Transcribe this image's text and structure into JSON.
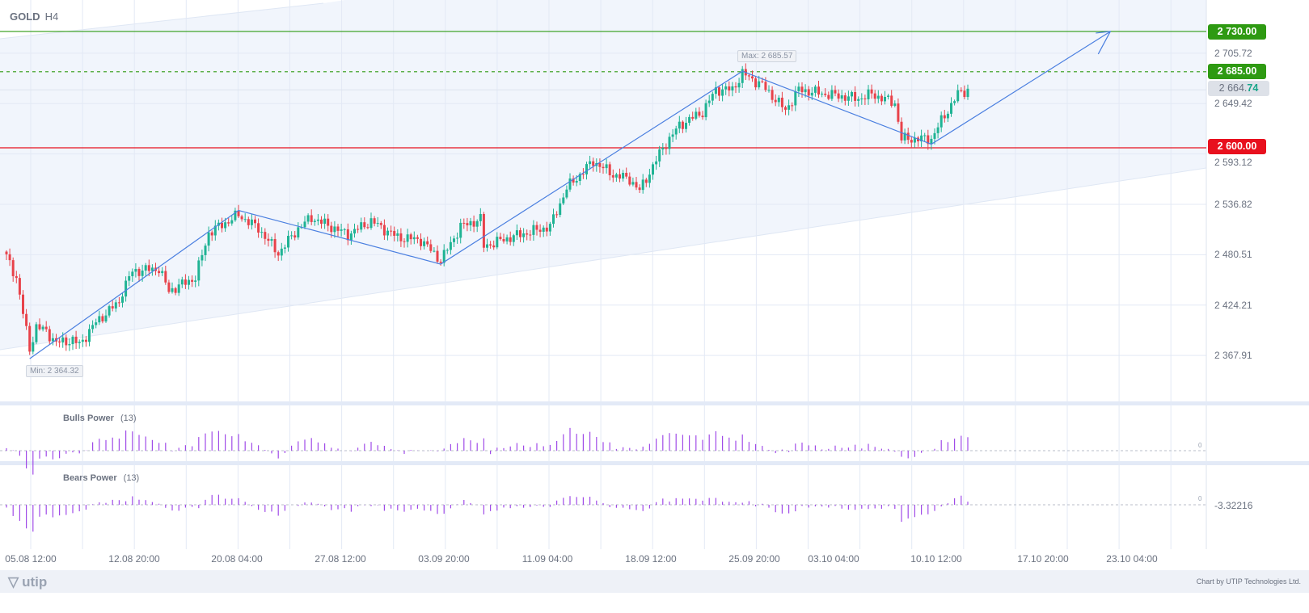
{
  "header": {
    "symbol": "GOLD",
    "timeframe": "H4"
  },
  "price_axis": {
    "ticks": [
      "2 705.72",
      "2 649.42",
      "2 593.12",
      "2 536.82",
      "2 480.51",
      "2 424.21",
      "2 367.91"
    ],
    "tick_values": [
      2705.72,
      2649.42,
      2593.12,
      2536.82,
      2480.51,
      2424.21,
      2367.91
    ],
    "levels": [
      {
        "label": "2 730.00",
        "value": 2730,
        "color": "#2e9a12",
        "style": "solid"
      },
      {
        "label": "2 685.00",
        "value": 2685,
        "color": "#2e9a12",
        "style": "dashed"
      },
      {
        "label": "2 600.00",
        "value": 2600,
        "color": "#e8101e",
        "style": "solid"
      }
    ],
    "current_price": {
      "main": "2 664.",
      "accent": "74",
      "value": 2664.74
    }
  },
  "annotations": {
    "max_label": "Max: 2 685.57",
    "min_label": "Min: 2 364.32"
  },
  "x_axis": {
    "labels": [
      "05.08 12:00",
      "12.08 20:00",
      "20.08 04:00",
      "27.08 12:00",
      "03.09 20:00",
      "11.09 04:00",
      "18.09 12:00",
      "25.09 20:00",
      "03.10 04:00",
      "10.10 12:00",
      "17.10 20:00",
      "23.10 04:00"
    ]
  },
  "indicators": {
    "bulls": {
      "name": "Bulls Power",
      "period": "(13)",
      "zero": "0"
    },
    "bears": {
      "name": "Bears Power",
      "period": "(13)",
      "zero": "0",
      "value": "-3.32216"
    }
  },
  "footer": {
    "logo": "utip",
    "credit": "Chart by UTIP Technologies Ltd."
  },
  "colors": {
    "up": "#1fb394",
    "down": "#e8424a",
    "trend": "#4a7fe0",
    "indicator": "#a04be8"
  },
  "chart_data": {
    "type": "candlestick",
    "bar_count": 291,
    "price_path": [
      [
        0,
        2478
      ],
      [
        3,
        2455
      ],
      [
        7,
        2375
      ],
      [
        9,
        2400
      ],
      [
        12,
        2395
      ],
      [
        15,
        2382
      ],
      [
        20,
        2385
      ],
      [
        22,
        2380
      ],
      [
        27,
        2405
      ],
      [
        34,
        2428
      ],
      [
        35,
        2440
      ],
      [
        38,
        2462
      ],
      [
        46,
        2465
      ],
      [
        49,
        2440
      ],
      [
        57,
        2455
      ],
      [
        61,
        2505
      ],
      [
        70,
        2525
      ],
      [
        76,
        2510
      ],
      [
        82,
        2482
      ],
      [
        88,
        2510
      ],
      [
        92,
        2522
      ],
      [
        103,
        2503
      ],
      [
        110,
        2518
      ],
      [
        118,
        2500
      ],
      [
        125,
        2497
      ],
      [
        131,
        2474
      ],
      [
        137,
        2512
      ],
      [
        143,
        2520
      ],
      [
        144,
        2490
      ],
      [
        152,
        2500
      ],
      [
        159,
        2507
      ],
      [
        164,
        2512
      ],
      [
        169,
        2555
      ],
      [
        177,
        2585
      ],
      [
        183,
        2570
      ],
      [
        188,
        2565
      ],
      [
        191,
        2552
      ],
      [
        198,
        2600
      ],
      [
        203,
        2625
      ],
      [
        210,
        2640
      ],
      [
        214,
        2665
      ],
      [
        219,
        2665
      ],
      [
        222,
        2683
      ],
      [
        228,
        2670
      ],
      [
        235,
        2642
      ],
      [
        239,
        2665
      ],
      [
        247,
        2660
      ],
      [
        257,
        2655
      ],
      [
        261,
        2660
      ],
      [
        268,
        2650
      ],
      [
        270,
        2610
      ],
      [
        279,
        2610
      ],
      [
        282,
        2630
      ],
      [
        287,
        2660
      ],
      [
        290,
        2665
      ]
    ],
    "zigzag": [
      [
        7,
        2364.32
      ],
      [
        70,
        2530
      ],
      [
        131,
        2470
      ],
      [
        222,
        2685.57
      ],
      [
        279,
        2604
      ],
      [
        333,
        2730
      ]
    ]
  }
}
